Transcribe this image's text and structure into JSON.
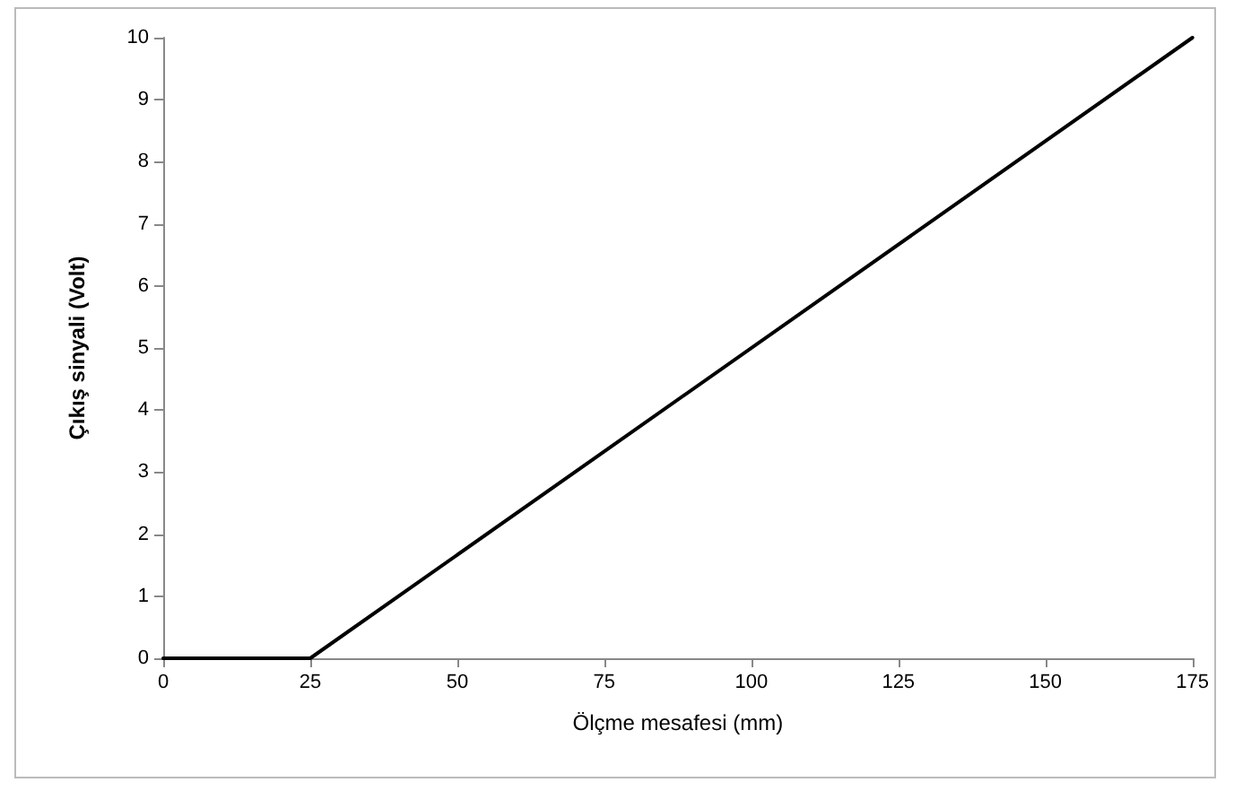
{
  "chart_data": {
    "type": "line",
    "xlabel": "Ölçme mesafesi (mm)",
    "ylabel": "Çıkış sinyali (Volt)",
    "series": [
      {
        "color": "#000000",
        "x": [
          0,
          25,
          175
        ],
        "values": [
          0,
          0,
          10
        ]
      }
    ],
    "xlim": [
      0,
      175
    ],
    "xticks": [
      0,
      25,
      50,
      75,
      100,
      125,
      150,
      175
    ],
    "ylim": [
      0,
      10
    ],
    "yticks": [
      0,
      1,
      2,
      3,
      4,
      5,
      6,
      7,
      8,
      9,
      10
    ],
    "grid": false,
    "marker": "none",
    "line_style": "solid"
  }
}
